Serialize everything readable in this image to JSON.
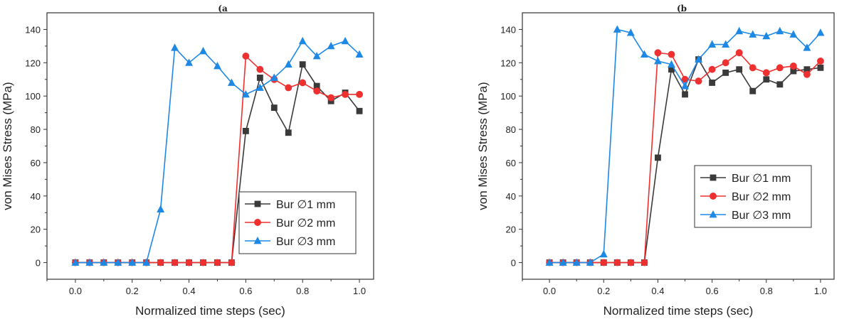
{
  "chart_data": [
    {
      "panel": "(a",
      "type": "line",
      "xlabel": "Normalized time steps (sec)",
      "ylabel": "von Mises Stress (MPa)",
      "xlim": [
        -0.1,
        1.05
      ],
      "ylim": [
        -10,
        150
      ],
      "xticks": [
        0.0,
        0.2,
        0.4,
        0.6,
        0.8,
        1.0
      ],
      "xtick_labels": [
        "0.0",
        "0.2",
        "0.4",
        "0.6",
        "0.8",
        "1.0"
      ],
      "yticks": [
        0,
        20,
        40,
        60,
        80,
        100,
        120,
        140
      ],
      "ytick_labels": [
        "0",
        "20",
        "40",
        "60",
        "80",
        "100",
        "120",
        "140"
      ],
      "legend_position": "bottom-right",
      "x": [
        0.0,
        0.05,
        0.1,
        0.15,
        0.2,
        0.25,
        0.3,
        0.35,
        0.4,
        0.45,
        0.5,
        0.55,
        0.6,
        0.65,
        0.7,
        0.75,
        0.8,
        0.85,
        0.9,
        0.95,
        1.0
      ],
      "series": [
        {
          "name": "Bur ∅1 mm",
          "color": "#3a3a3a",
          "marker": "square",
          "values": [
            0,
            0,
            0,
            0,
            0,
            0,
            0,
            0,
            0,
            0,
            0,
            0,
            79,
            111,
            93,
            78,
            119,
            106,
            97,
            102,
            91
          ]
        },
        {
          "name": "Bur ∅2 mm",
          "color": "#ee3030",
          "marker": "circle",
          "values": [
            0,
            0,
            0,
            0,
            0,
            0,
            0,
            0,
            0,
            0,
            0,
            0,
            124,
            116,
            110,
            105,
            108,
            103,
            99,
            101,
            101
          ]
        },
        {
          "name": "Bur ∅3 mm",
          "color": "#1e88e5",
          "marker": "triangle",
          "values": [
            0,
            0,
            0,
            0,
            0,
            0,
            32,
            129,
            120,
            127,
            118,
            108,
            101,
            105,
            111,
            119,
            133,
            124,
            130,
            133,
            125
          ]
        }
      ]
    },
    {
      "panel": "(b",
      "type": "line",
      "xlabel": "Normalized time steps (sec)",
      "ylabel": "von Mises Stress (MPa)",
      "xlim": [
        -0.1,
        1.05
      ],
      "ylim": [
        -10,
        150
      ],
      "xticks": [
        0.0,
        0.2,
        0.4,
        0.6,
        0.8,
        1.0
      ],
      "xtick_labels": [
        "0.0",
        "0.2",
        "0.4",
        "0.6",
        "0.8",
        "1.0"
      ],
      "yticks": [
        0,
        20,
        40,
        60,
        80,
        100,
        120,
        140
      ],
      "ytick_labels": [
        "0",
        "20",
        "40",
        "60",
        "80",
        "100",
        "120",
        "140"
      ],
      "legend_position": "center-right",
      "x": [
        0.0,
        0.05,
        0.1,
        0.15,
        0.2,
        0.25,
        0.3,
        0.35,
        0.4,
        0.45,
        0.5,
        0.55,
        0.6,
        0.65,
        0.7,
        0.75,
        0.8,
        0.85,
        0.9,
        0.95,
        1.0
      ],
      "series": [
        {
          "name": "Bur ∅1 mm",
          "color": "#3a3a3a",
          "marker": "square",
          "values": [
            0,
            0,
            0,
            0,
            0,
            0,
            0,
            0,
            63,
            116,
            101,
            122,
            108,
            114,
            116,
            103,
            110,
            107,
            115,
            116,
            117
          ]
        },
        {
          "name": "Bur ∅2 mm",
          "color": "#ee3030",
          "marker": "circle",
          "values": [
            0,
            0,
            0,
            0,
            0,
            0,
            0,
            0,
            126,
            125,
            110,
            109,
            116,
            120,
            126,
            117,
            114,
            117,
            118,
            113,
            121
          ]
        },
        {
          "name": "Bur ∅3 mm",
          "color": "#1e88e5",
          "marker": "triangle",
          "values": [
            0,
            0,
            0,
            0,
            5,
            140,
            138,
            125,
            121,
            119,
            106,
            122,
            131,
            131,
            139,
            137,
            136,
            139,
            137,
            129,
            138
          ]
        }
      ]
    }
  ]
}
